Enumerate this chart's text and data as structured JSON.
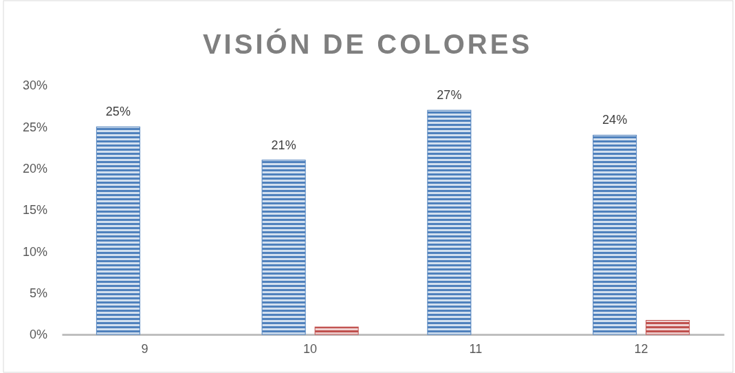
{
  "chart_data": {
    "type": "bar",
    "title": "VISIÓN DE COLORES",
    "categories": [
      "9",
      "10",
      "11",
      "12"
    ],
    "series": [
      {
        "color": "#4f81bd",
        "values": [
          25,
          21,
          27,
          24
        ],
        "value_labels": [
          "25%",
          "21%",
          "27%",
          "24%"
        ]
      },
      {
        "color": "#c0504d",
        "values": [
          null,
          0.9,
          null,
          1.7
        ]
      }
    ],
    "ylim": [
      0,
      30
    ],
    "yticks": [
      {
        "value": 0,
        "label": "0%"
      },
      {
        "value": 5,
        "label": "5%"
      },
      {
        "value": 10,
        "label": "10%"
      },
      {
        "value": 15,
        "label": "15%"
      },
      {
        "value": 20,
        "label": "20%"
      },
      {
        "value": 25,
        "label": "25%"
      },
      {
        "value": 30,
        "label": "30%"
      }
    ],
    "grid": false
  }
}
